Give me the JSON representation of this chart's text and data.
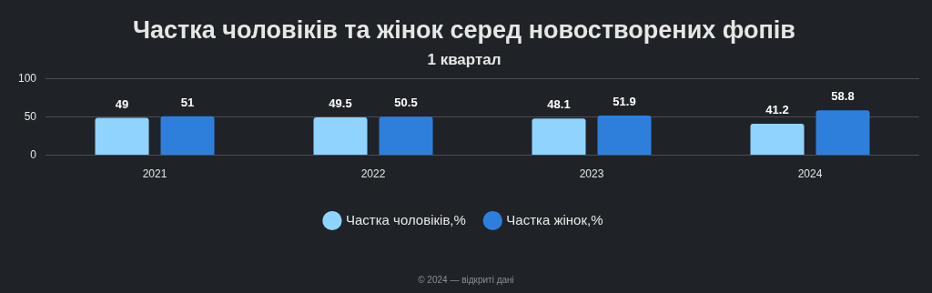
{
  "chart_data": {
    "type": "bar",
    "title": "Частка чоловіків та жінок серед новостворених фопів",
    "subtitle": "1 квартал",
    "categories": [
      "2021",
      "2022",
      "2023",
      "2024"
    ],
    "series": [
      {
        "name": "Частка чоловіків,%",
        "color": "#8fd3fe",
        "values": [
          49,
          49.5,
          48.1,
          41.2
        ]
      },
      {
        "name": "Частка жінок,%",
        "color": "#2d7fdb",
        "values": [
          51,
          50.5,
          51.9,
          58.8
        ]
      }
    ],
    "ylim": [
      0,
      100
    ],
    "yticks": [
      0,
      50,
      100
    ],
    "grid": "y",
    "legend": "bottom",
    "data_labels": true,
    "annotations": [
      "© 2024 — відкриті дані"
    ]
  }
}
